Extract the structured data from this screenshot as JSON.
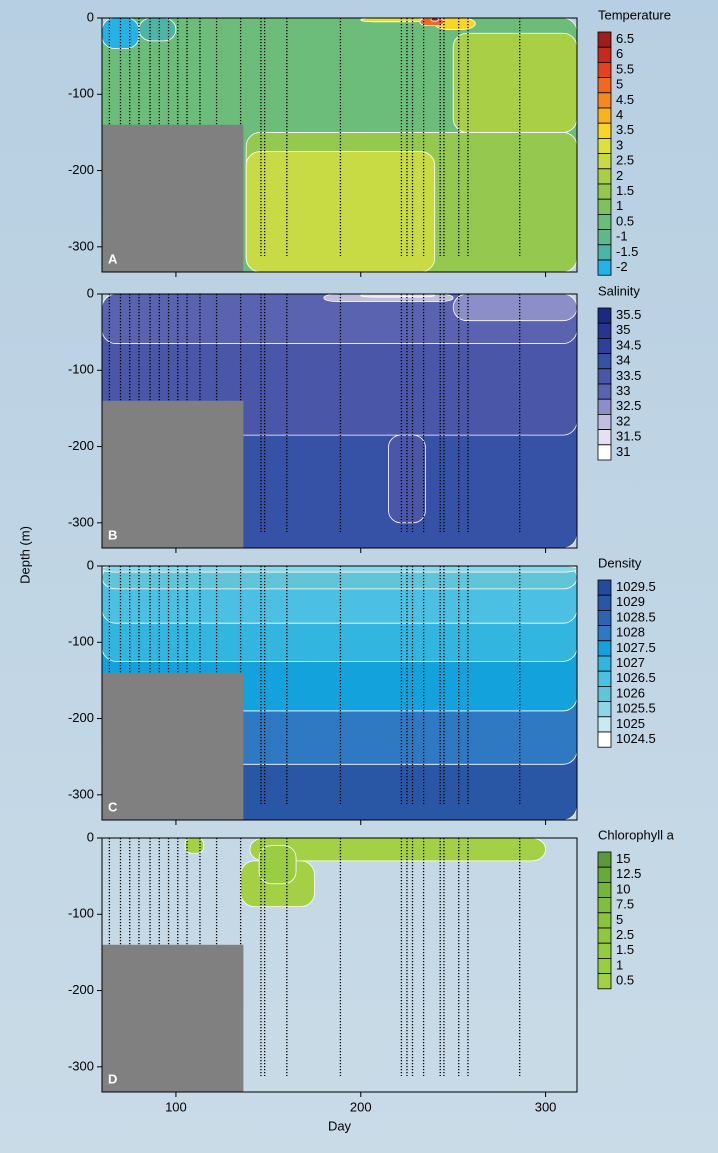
{
  "chart_data": [
    {
      "type": "contour",
      "title": "Temperature",
      "panel_label": "A",
      "xlim": [
        60,
        317
      ],
      "ylim": [
        -333,
        0
      ],
      "xticks": [
        100,
        200,
        300
      ],
      "yticks": [
        0,
        -100,
        -200,
        -300
      ],
      "levels": [
        6.5,
        6,
        5.5,
        5,
        4.5,
        4,
        3.5,
        3,
        2.5,
        2,
        1.5,
        1,
        0.5,
        -1,
        -1.5,
        -2
      ],
      "colors": [
        "#a01d1d",
        "#c52a1e",
        "#e2431e",
        "#ef6a1f",
        "#f5891f",
        "#f9b31c",
        "#fbd524",
        "#dfe03a",
        "#c9db44",
        "#a8cf45",
        "#95c84e",
        "#7fc25d",
        "#6cbd7a",
        "#5fb88d",
        "#4db5a6",
        "#27b2e4"
      ],
      "regions": [
        {
          "level": 0.5,
          "x": [
            60,
            317
          ],
          "y": [
            -333,
            0
          ]
        },
        {
          "level": 1.5,
          "x": [
            138,
            317
          ],
          "y": [
            -333,
            -150
          ]
        },
        {
          "level": 2.5,
          "x": [
            138,
            240
          ],
          "y": [
            -333,
            -175
          ]
        },
        {
          "level": 2,
          "x": [
            250,
            317
          ],
          "y": [
            -150,
            -20
          ]
        },
        {
          "level": -2,
          "x": [
            60,
            80
          ],
          "y": [
            -40,
            0
          ]
        },
        {
          "level": -1.5,
          "x": [
            80,
            100
          ],
          "y": [
            -30,
            0
          ]
        },
        {
          "level": 3,
          "x": [
            200,
            235
          ],
          "y": [
            -5,
            0
          ]
        },
        {
          "level": 3.5,
          "x": [
            240,
            262
          ],
          "y": [
            -15,
            0
          ]
        },
        {
          "level": 5,
          "x": [
            232,
            245
          ],
          "y": [
            -10,
            0
          ]
        },
        {
          "level": 6.5,
          "x": [
            238,
            242
          ],
          "y": [
            -4,
            0
          ]
        }
      ],
      "mask": {
        "x": [
          60,
          136.5
        ],
        "y": [
          -333,
          -140
        ]
      },
      "mask_color": "#808080",
      "stations": [
        64,
        70,
        75,
        80,
        86,
        91,
        96,
        101,
        106,
        113,
        122,
        135,
        146,
        148,
        160,
        189,
        222,
        225,
        228,
        234,
        243,
        245,
        253,
        258,
        286
      ],
      "station_bottom": -312
    },
    {
      "type": "contour",
      "title": "Salinity",
      "panel_label": "B",
      "ylabel": "Depth (m)",
      "xlim": [
        60,
        317
      ],
      "ylim": [
        -333,
        0
      ],
      "xticks": [
        100,
        200,
        300
      ],
      "yticks": [
        0,
        -100,
        -200,
        -300
      ],
      "levels": [
        35.5,
        35,
        34.5,
        34,
        33.5,
        33,
        32.5,
        32,
        31.5,
        31
      ],
      "colors": [
        "#1c2a7e",
        "#27358f",
        "#2e409c",
        "#3652a6",
        "#4a56a8",
        "#5a63b0",
        "#8c8ec8",
        "#c0bfe0",
        "#e3e2f2",
        "#ffffff"
      ],
      "regions": [
        {
          "level": 34,
          "x": [
            60,
            317
          ],
          "y": [
            -333,
            0
          ]
        },
        {
          "level": 33.5,
          "x": [
            60,
            317
          ],
          "y": [
            -185,
            0
          ]
        },
        {
          "level": 33.5,
          "x": [
            215,
            235
          ],
          "y": [
            -300,
            -185
          ]
        },
        {
          "level": 33,
          "x": [
            60,
            317
          ],
          "y": [
            -65,
            0
          ]
        },
        {
          "level": 32.5,
          "x": [
            250,
            317
          ],
          "y": [
            -35,
            0
          ]
        },
        {
          "level": 32,
          "x": [
            180,
            250
          ],
          "y": [
            -10,
            0
          ]
        },
        {
          "level": 31.5,
          "x": [
            200,
            240
          ],
          "y": [
            -4,
            0
          ]
        }
      ],
      "mask": {
        "x": [
          60,
          136.5
        ],
        "y": [
          -333,
          -140
        ]
      },
      "mask_color": "#808080",
      "stations": [
        64,
        70,
        75,
        80,
        86,
        91,
        96,
        101,
        106,
        113,
        122,
        135,
        146,
        148,
        160,
        189,
        222,
        225,
        228,
        234,
        243,
        245,
        253,
        258,
        286
      ],
      "station_bottom": -312
    },
    {
      "type": "contour",
      "title": "Density",
      "panel_label": "C",
      "xlim": [
        60,
        317
      ],
      "ylim": [
        -333,
        0
      ],
      "xticks": [
        100,
        200,
        300
      ],
      "yticks": [
        0,
        -100,
        -200,
        -300
      ],
      "levels": [
        1029.5,
        1029,
        1028.5,
        1028,
        1027.5,
        1027,
        1026.5,
        1026,
        1025.5,
        1025,
        1024.5
      ],
      "colors": [
        "#244a9c",
        "#2a56a6",
        "#2e63b2",
        "#2f78c2",
        "#14a2dc",
        "#32b5df",
        "#4bc0e2",
        "#62c5d7",
        "#8ed6e6",
        "#c8ebf3",
        "#ffffff"
      ],
      "regions": [
        {
          "level": 1029,
          "x": [
            60,
            317
          ],
          "y": [
            -333,
            0
          ]
        },
        {
          "level": 1028,
          "x": [
            60,
            317
          ],
          "y": [
            -260,
            0
          ]
        },
        {
          "level": 1027.5,
          "x": [
            60,
            317
          ],
          "y": [
            -190,
            0
          ]
        },
        {
          "level": 1027,
          "x": [
            60,
            317
          ],
          "y": [
            -125,
            0
          ]
        },
        {
          "level": 1026.5,
          "x": [
            60,
            317
          ],
          "y": [
            -75,
            0
          ]
        },
        {
          "level": 1026,
          "x": [
            60,
            317
          ],
          "y": [
            -30,
            0
          ]
        },
        {
          "level": 1025.5,
          "x": [
            60,
            317
          ],
          "y": [
            -8,
            0
          ]
        }
      ],
      "mask": {
        "x": [
          60,
          136.5
        ],
        "y": [
          -333,
          -140
        ]
      },
      "mask_color": "#808080",
      "stations": [
        64,
        70,
        75,
        80,
        86,
        91,
        96,
        101,
        106,
        113,
        122,
        135,
        146,
        148,
        160,
        189,
        222,
        225,
        228,
        234,
        243,
        245,
        253,
        258,
        286
      ],
      "station_bottom": -312
    },
    {
      "type": "contour",
      "title": "Chlorophyll a",
      "panel_label": "D",
      "xlabel": "Day",
      "xlim": [
        60,
        317
      ],
      "ylim": [
        -333,
        0
      ],
      "xticks": [
        100,
        200,
        300
      ],
      "yticks": [
        0,
        -100,
        -200,
        -300
      ],
      "levels": [
        15,
        12.5,
        10,
        7.5,
        5,
        2.5,
        1.5,
        1,
        0.5
      ],
      "colors": [
        "#5a9a3a",
        "#68a93a",
        "#74b53a",
        "#7fbf3b",
        "#88c53c",
        "#8fc83e",
        "#95cb40",
        "#9bcd42",
        "#a3d044"
      ],
      "regions": [
        {
          "level": 0.5,
          "x": [
            140,
            300
          ],
          "y": [
            -30,
            0
          ]
        },
        {
          "level": 0.5,
          "x": [
            135,
            175
          ],
          "y": [
            -90,
            -30
          ]
        },
        {
          "level": 1,
          "x": [
            145,
            165
          ],
          "y": [
            -60,
            -10
          ]
        },
        {
          "level": 0.5,
          "x": [
            105,
            115
          ],
          "y": [
            -20,
            0
          ]
        }
      ],
      "mask": {
        "x": [
          60,
          136.5
        ],
        "y": [
          -333,
          -140
        ]
      },
      "mask_color": "#808080",
      "stations": [
        64,
        70,
        75,
        80,
        86,
        91,
        96,
        101,
        106,
        113,
        122,
        135,
        146,
        148,
        160,
        189,
        222,
        225,
        228,
        234,
        243,
        245,
        253,
        258,
        286
      ],
      "station_bottom": -312
    }
  ]
}
